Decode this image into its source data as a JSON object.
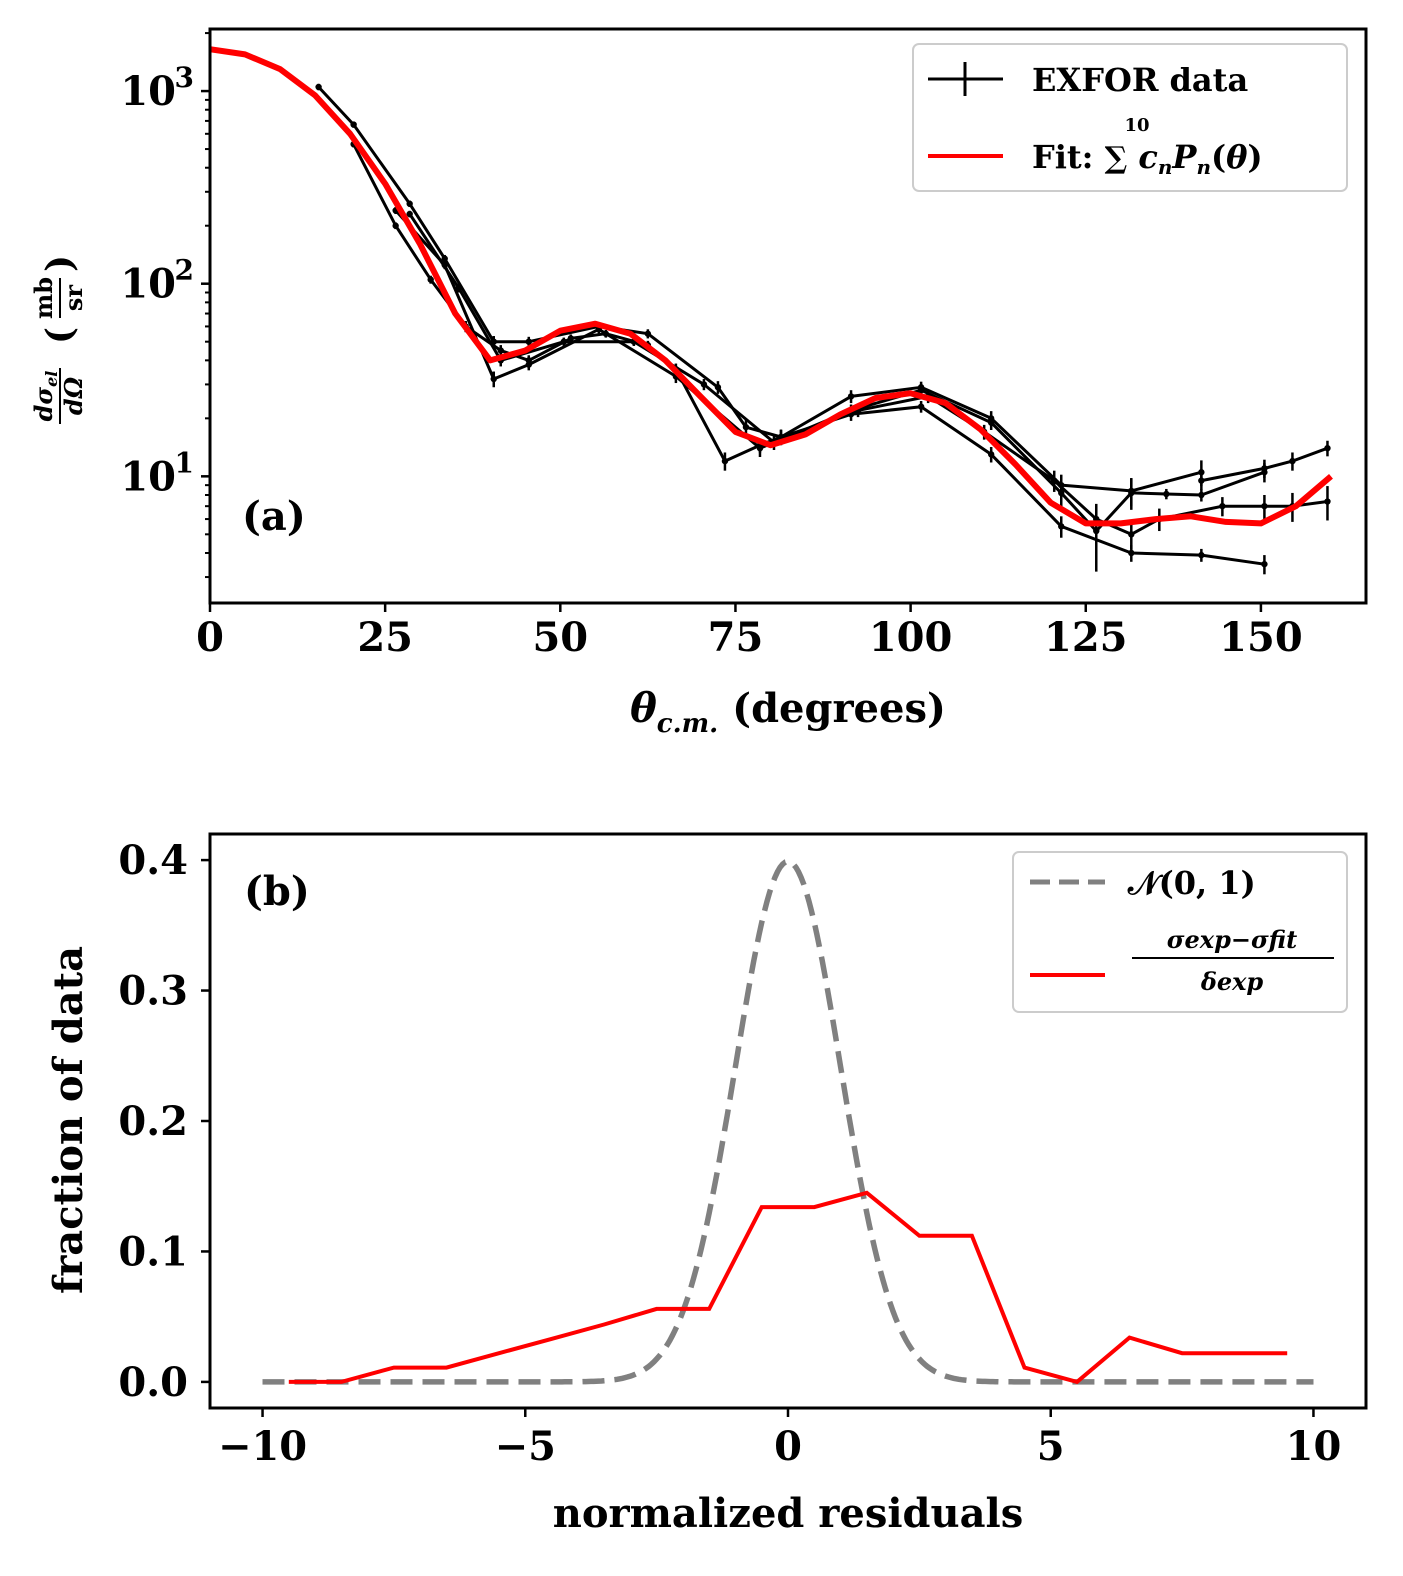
{
  "chart_data": [
    {
      "type": "line",
      "panel_label": "(a)",
      "xlabel": "θc.m. (degrees)",
      "ylabel": "dσel/dΩ (mb/sr)",
      "xlim": [
        0,
        165
      ],
      "ylim": [
        2.2,
        2100
      ],
      "yscale": "log",
      "xticks": [
        0,
        25,
        50,
        75,
        100,
        125,
        150
      ],
      "xtick_labels": [
        "0",
        "25",
        "50",
        "75",
        "100",
        "125",
        "150"
      ],
      "ytick_labels": [
        {
          "base": "10",
          "exp": "1",
          "value": 10
        },
        {
          "base": "10",
          "exp": "2",
          "value": 100
        },
        {
          "base": "10",
          "exp": "3",
          "value": 1000
        }
      ],
      "legend_position": "top-right",
      "legend": [
        {
          "label": "EXFOR data",
          "color": "#000000",
          "style": "errorbar"
        },
        {
          "label": "Fit: ∑ cnPn(θ)",
          "sum_upper": "10",
          "color": "#ff0000",
          "style": "line"
        }
      ],
      "series": [
        {
          "name": "EXFOR data (set 1)",
          "x": [
            15.5,
            20.5,
            28.5,
            33.5,
            40.5,
            45.5,
            55.5,
            62.5,
            72.5,
            76.5,
            81.5,
            91.5,
            101.5,
            111.5,
            121.5,
            131.5,
            141.5
          ],
          "y": [
            1050,
            670,
            260,
            135,
            50,
            50,
            60,
            55,
            29,
            18,
            16,
            26,
            29,
            20,
            9,
            8.4,
            10.5
          ],
          "err": [
            40,
            25,
            10,
            6,
            3.5,
            3,
            3,
            3,
            2.2,
            1.6,
            1.5,
            2,
            2,
            1.8,
            1.2,
            1.4,
            1.6
          ]
        },
        {
          "name": "EXFOR data (set 2)",
          "x": [
            20.5,
            26.5,
            31.5,
            36.5,
            41.5,
            45.5,
            51.5,
            56.5,
            62.5,
            66.5,
            73.5,
            78.5,
            81.5,
            91.5,
            101.5,
            111.5,
            121.5,
            131.5,
            141.5,
            150.5
          ],
          "y": [
            530,
            200,
            105,
            60,
            45,
            40,
            52,
            55,
            48,
            36,
            12,
            14.5,
            16,
            21,
            23,
            13,
            5.5,
            4,
            3.9,
            3.5
          ],
          "err": [
            20,
            8,
            5,
            4,
            3,
            2.5,
            2.5,
            2.5,
            2.5,
            2.5,
            1.3,
            1.2,
            1.4,
            1.6,
            1.6,
            1.2,
            0.7,
            0.4,
            0.3,
            0.4
          ]
        },
        {
          "name": "EXFOR data (set 3)",
          "x": [
            26.5,
            33.5,
            40.5,
            45.5,
            55.5,
            66.5,
            78.5,
            91.5,
            101.5,
            111.5,
            121.5,
            126.5,
            131.5,
            136.5,
            141.5,
            150.5
          ],
          "y": [
            240,
            125,
            32,
            38,
            58,
            33,
            14,
            22,
            28,
            19,
            8.2,
            5.2,
            8.2,
            8.1,
            8.0,
            10.5
          ],
          "err": [
            10,
            6,
            3,
            2.5,
            3,
            2.5,
            1.4,
            1.6,
            2,
            1.6,
            1.3,
            2,
            1.5,
            0.5,
            0.6,
            1.2
          ]
        },
        {
          "name": "EXFOR data (set 4)",
          "x": [
            28.5,
            35.5,
            41.5,
            50.5,
            60.5,
            70.5,
            80.5,
            92.5,
            102.5,
            110.5,
            120.5,
            126.5,
            131.5,
            135.5,
            144.5,
            150.5,
            154.5,
            159.5
          ],
          "y": [
            230,
            95,
            40,
            50,
            50,
            30,
            15,
            22,
            26,
            17,
            9.5,
            6,
            5,
            6,
            7,
            7,
            7,
            7.4
          ],
          "err": [
            9,
            5,
            2.8,
            2.5,
            2.5,
            2,
            1.3,
            1.7,
            2,
            1.5,
            1.2,
            1,
            0.8,
            0.8,
            0.8,
            1,
            1.2,
            1.5
          ]
        },
        {
          "name": "EXFOR data (set 5)",
          "x": [
            141.5,
            150.5,
            154.5,
            159.5
          ],
          "y": [
            9.5,
            11,
            12,
            14
          ],
          "err": [
            1,
            1.2,
            1.3,
            1.3
          ]
        },
        {
          "name": "Fit",
          "color": "#ff0000",
          "x": [
            0,
            5,
            10,
            15,
            20,
            25,
            30,
            35,
            40,
            45,
            50,
            55,
            60,
            65,
            70,
            75,
            80,
            85,
            90,
            95,
            100,
            105,
            110,
            115,
            120,
            125,
            130,
            135,
            140,
            145,
            150,
            155,
            160
          ],
          "y": [
            1650,
            1550,
            1300,
            950,
            600,
            330,
            160,
            70,
            40,
            45,
            57,
            62,
            55,
            40,
            26,
            17,
            14.5,
            16.5,
            21,
            25.5,
            27,
            24,
            17.5,
            11.5,
            7.3,
            5.7,
            5.7,
            6,
            6.2,
            5.8,
            5.7,
            7,
            10
          ]
        }
      ]
    },
    {
      "type": "line",
      "panel_label": "(b)",
      "xlabel": "normalized residuals",
      "ylabel": "fraction of data",
      "xlim": [
        -11,
        11
      ],
      "ylim": [
        -0.02,
        0.42
      ],
      "xticks": [
        -10,
        -5,
        0,
        5,
        10
      ],
      "xtick_labels": [
        "−10",
        "−5",
        "0",
        "5",
        "10"
      ],
      "yticks": [
        0.0,
        0.1,
        0.2,
        0.3,
        0.4
      ],
      "ytick_labels": [
        "0.0",
        "0.1",
        "0.2",
        "0.3",
        "0.4"
      ],
      "legend_position": "top-right",
      "legend": [
        {
          "label": "𝒩(0, 1)",
          "color": "#808080",
          "style": "dashed"
        },
        {
          "label": "(σexp − σfit) / δexp",
          "numerator": "σexp−σfit",
          "denominator": "δexp",
          "color": "#ff0000",
          "style": "line"
        }
      ],
      "series": [
        {
          "name": "N(0,1)",
          "color": "#808080",
          "dashed": true,
          "function": "normal_pdf",
          "mean": 0,
          "std": 1,
          "x_range": [
            -10,
            10
          ]
        },
        {
          "name": "normalized residuals",
          "color": "#ff0000",
          "x": [
            -9.5,
            -8.5,
            -7.5,
            -6.5,
            -5.5,
            -4.5,
            -3.5,
            -2.5,
            -1.5,
            -0.5,
            0.5,
            1.5,
            2.5,
            3.5,
            4.5,
            5.5,
            6.5,
            7.5,
            8.5,
            9.5
          ],
          "y": [
            0.0,
            0.0,
            0.011,
            0.011,
            0.022,
            0.033,
            0.044,
            0.056,
            0.056,
            0.134,
            0.134,
            0.145,
            0.112,
            0.112,
            0.011,
            0.0,
            0.034,
            0.022,
            0.022,
            0.022
          ]
        }
      ]
    }
  ]
}
